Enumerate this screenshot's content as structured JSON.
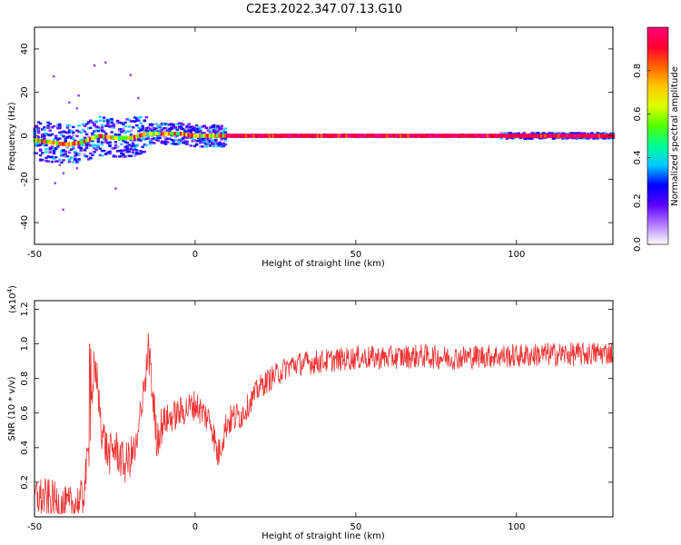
{
  "title": "C2E3.2022.347.07.13.G10",
  "colors": {
    "snr_line": "#ee3333",
    "colormap": [
      "#ffffff",
      "#b47cff",
      "#5a00ff",
      "#0000ff",
      "#00c8ff",
      "#00ff96",
      "#50ff00",
      "#dcff00",
      "#ffc800",
      "#ff6400",
      "#ff0032",
      "#ff0078"
    ]
  },
  "chart_data": [
    {
      "type": "heatmap",
      "xlabel": "Height of straight line (km)",
      "ylabel": "Frequency (Hz)",
      "xlim": [
        -50,
        130
      ],
      "ylim": [
        -50,
        50
      ],
      "xticks": [
        -50,
        0,
        50,
        100
      ],
      "yticks": [
        -40,
        -20,
        0,
        20,
        40
      ],
      "grid": false,
      "colorbar": {
        "label": "Normalized spectral amplitude",
        "range": [
          0,
          1
        ],
        "ticks": [
          "0.0",
          "0.2",
          "0.4",
          "0.6",
          "0.8"
        ],
        "tick_values": [
          0,
          0.2,
          0.4,
          0.6,
          0.8
        ]
      },
      "ridge": {
        "x": [
          -50,
          -45,
          -40,
          -35,
          -30,
          -25,
          -20,
          -15,
          -10,
          -5,
          0,
          10,
          20,
          50,
          100,
          130
        ],
        "frequency": [
          -2,
          -3,
          -4,
          -3,
          0,
          -1,
          -1,
          1,
          1,
          1,
          0,
          0,
          0,
          0,
          0,
          0
        ]
      }
    },
    {
      "type": "line",
      "xlabel": "Height of straight line (km)",
      "ylabel": "SNR (10 * v/v)",
      "y_multiplier": "(x10",
      "y_multiplier_exp": "4",
      "y_multiplier_close": ")",
      "xlim": [
        -50,
        130
      ],
      "ylim": [
        0,
        1.25
      ],
      "xticks": [
        -50,
        0,
        50,
        100
      ],
      "yticks": [
        0.2,
        0.4,
        0.6,
        0.8,
        1.0,
        1.2
      ],
      "ytick_labels": [
        "0.2",
        "0.4",
        "0.6",
        "0.8",
        "1.0",
        "1.2"
      ],
      "grid": false,
      "series": [
        {
          "x": [
            -50,
            -45,
            -40,
            -35,
            -33,
            -31,
            -29,
            -27,
            -25,
            -22,
            -20,
            -18,
            -16,
            -14,
            -12,
            -10,
            -5,
            0,
            5,
            7,
            10,
            15,
            20,
            25,
            30,
            40,
            50,
            60,
            70,
            80,
            90,
            100,
            110,
            120,
            130
          ],
          "y": [
            0.12,
            0.1,
            0.05,
            0.1,
            0.4,
            0.9,
            0.5,
            0.35,
            0.4,
            0.3,
            0.35,
            0.4,
            0.8,
            0.9,
            0.45,
            0.55,
            0.6,
            0.65,
            0.55,
            0.35,
            0.55,
            0.6,
            0.75,
            0.82,
            0.88,
            0.9,
            0.92,
            0.92,
            0.93,
            0.92,
            0.93,
            0.93,
            0.94,
            0.94,
            0.95
          ]
        }
      ]
    }
  ]
}
